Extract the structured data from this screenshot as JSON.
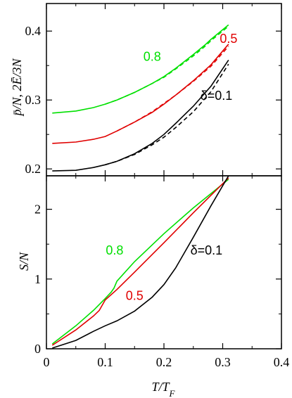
{
  "chart_data": [
    {
      "type": "line",
      "panel": "top",
      "ylabel": "p̄/N, 2Ē/3N",
      "xlim": [
        0,
        0.4
      ],
      "ylim": [
        0.19,
        0.44
      ],
      "yticks": [
        0.2,
        0.3,
        0.4
      ],
      "ytick_labels": [
        "0.2",
        "0.3",
        "0.4"
      ],
      "grid": false,
      "series": [
        {
          "name": "0.8",
          "color": "#00e000",
          "dashed": false,
          "x": [
            0.01,
            0.05,
            0.08,
            0.1,
            0.12,
            0.15,
            0.18,
            0.2,
            0.22,
            0.25,
            0.27,
            0.28,
            0.31
          ],
          "y": [
            0.281,
            0.284,
            0.289,
            0.294,
            0.3,
            0.311,
            0.324,
            0.334,
            0.346,
            0.366,
            0.38,
            0.388,
            0.409
          ]
        },
        {
          "name": "",
          "color": "#00e000",
          "dashed": true,
          "x": [
            0.1,
            0.12,
            0.15,
            0.18,
            0.2,
            0.22,
            0.25,
            0.27,
            0.28,
            0.31
          ],
          "y": [
            0.294,
            0.3,
            0.311,
            0.324,
            0.333,
            0.345,
            0.364,
            0.378,
            0.386,
            0.407
          ]
        },
        {
          "name": "0.5",
          "color": "#e00000",
          "dashed": false,
          "x": [
            0.01,
            0.05,
            0.08,
            0.1,
            0.12,
            0.15,
            0.18,
            0.2,
            0.22,
            0.25,
            0.28,
            0.31
          ],
          "y": [
            0.237,
            0.239,
            0.243,
            0.247,
            0.255,
            0.268,
            0.282,
            0.294,
            0.307,
            0.328,
            0.351,
            0.381
          ]
        },
        {
          "name": "",
          "color": "#e00000",
          "dashed": true,
          "x": [
            0.12,
            0.15,
            0.18,
            0.2,
            0.22,
            0.25,
            0.28,
            0.31
          ],
          "y": [
            0.255,
            0.268,
            0.283,
            0.295,
            0.307,
            0.327,
            0.349,
            0.378
          ]
        },
        {
          "name": "δ=0.1",
          "color": "#000000",
          "dashed": false,
          "x": [
            0.01,
            0.05,
            0.08,
            0.1,
            0.12,
            0.15,
            0.18,
            0.2,
            0.22,
            0.25,
            0.28,
            0.31
          ],
          "y": [
            0.197,
            0.198,
            0.202,
            0.206,
            0.211,
            0.222,
            0.237,
            0.25,
            0.266,
            0.291,
            0.32,
            0.358
          ]
        },
        {
          "name": "",
          "color": "#000000",
          "dashed": true,
          "x": [
            0.1,
            0.12,
            0.15,
            0.18,
            0.2,
            0.22,
            0.25,
            0.28,
            0.31
          ],
          "y": [
            0.206,
            0.211,
            0.221,
            0.235,
            0.246,
            0.26,
            0.283,
            0.312,
            0.352
          ]
        }
      ],
      "annotations": [
        {
          "text": "0.8",
          "color": "#00e000",
          "x": 0.165,
          "y": 0.357
        },
        {
          "text": "0.5",
          "color": "#e00000",
          "x": 0.295,
          "y": 0.383
        },
        {
          "text": "δ=0.1",
          "color": "#000000",
          "x": 0.262,
          "y": 0.3
        }
      ]
    },
    {
      "type": "line",
      "panel": "bottom",
      "xlabel": "T/T_F",
      "ylabel": "S/N",
      "xlim": [
        0,
        0.4
      ],
      "ylim": [
        0,
        2.48
      ],
      "xticks": [
        0,
        0.1,
        0.2,
        0.3,
        0.4
      ],
      "xtick_labels": [
        "0",
        "0.1",
        "0.2",
        "0.3",
        "0.4"
      ],
      "yticks": [
        0,
        1,
        2
      ],
      "ytick_labels": [
        "0",
        "1",
        "2"
      ],
      "grid": false,
      "series": [
        {
          "name": "0.8",
          "color": "#00e000",
          "dashed": false,
          "x": [
            0.01,
            0.05,
            0.08,
            0.1,
            0.11,
            0.115,
            0.12,
            0.15,
            0.2,
            0.25,
            0.31
          ],
          "y": [
            0.07,
            0.33,
            0.55,
            0.72,
            0.81,
            0.87,
            0.97,
            1.25,
            1.65,
            2.02,
            2.43
          ]
        },
        {
          "name": "0.5",
          "color": "#e00000",
          "dashed": false,
          "x": [
            0.01,
            0.05,
            0.08,
            0.09,
            0.1,
            0.12,
            0.15,
            0.2,
            0.25,
            0.31
          ],
          "y": [
            0.05,
            0.27,
            0.47,
            0.55,
            0.7,
            0.85,
            1.1,
            1.52,
            1.95,
            2.45
          ]
        },
        {
          "name": "δ=0.1",
          "color": "#000000",
          "dashed": false,
          "x": [
            0.01,
            0.05,
            0.08,
            0.1,
            0.12,
            0.15,
            0.18,
            0.2,
            0.22,
            0.25,
            0.28,
            0.31
          ],
          "y": [
            0.01,
            0.12,
            0.25,
            0.33,
            0.4,
            0.54,
            0.74,
            0.92,
            1.16,
            1.6,
            2.05,
            2.48
          ]
        }
      ],
      "annotations": [
        {
          "text": "0.8",
          "color": "#00e000",
          "x": 0.101,
          "y": 1.35
        },
        {
          "text": "0.5",
          "color": "#e00000",
          "x": 0.135,
          "y": 0.7
        },
        {
          "text": "δ=0.1",
          "color": "#000000",
          "x": 0.245,
          "y": 1.35
        }
      ]
    }
  ]
}
